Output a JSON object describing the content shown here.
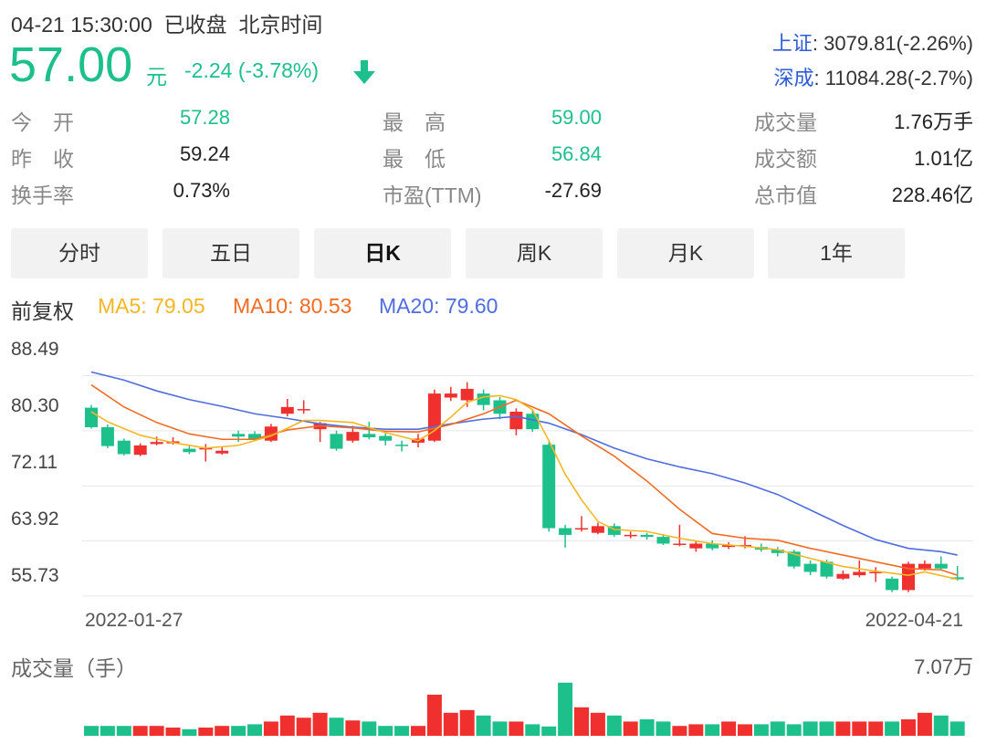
{
  "header": {
    "datetime": "04-21 15:30:00",
    "status": "已收盘",
    "timezone": "北京时间",
    "price": "57.00",
    "unit": "元",
    "change": "-2.24 (-3.78%)",
    "trend_icon": "arrow-down-icon"
  },
  "indices": [
    {
      "name": "上证",
      "value": ": 3079.81(-2.26%)"
    },
    {
      "name": "深成",
      "value": ": 11084.28(-2.7%)"
    }
  ],
  "stats": {
    "open_label": "今　开",
    "open": "57.28",
    "prev_close_label": "昨　收",
    "prev_close": "59.24",
    "turnover_label": "换手率",
    "turnover": "0.73%",
    "high_label": "最　高",
    "high": "59.00",
    "low_label": "最　低",
    "low": "56.84",
    "pe_label": "市盈(TTM)",
    "pe": "-27.69",
    "volume_label": "成交量",
    "volume": "1.76万手",
    "amount_label": "成交额",
    "amount": "1.01亿",
    "mktcap_label": "总市值",
    "mktcap": "228.46亿"
  },
  "tabs": [
    {
      "label": "分时",
      "active": false
    },
    {
      "label": "五日",
      "active": false
    },
    {
      "label": "日K",
      "active": true
    },
    {
      "label": "周K",
      "active": false
    },
    {
      "label": "月K",
      "active": false
    },
    {
      "label": "1年",
      "active": false
    }
  ],
  "legend": {
    "adjust": "前复权",
    "ma5": "MA5: 79.05",
    "ma10": "MA10: 80.53",
    "ma20": "MA20: 79.60"
  },
  "colors": {
    "up": "#f0302f",
    "down": "#1dbf8a",
    "ma5": "#f5b623",
    "ma10": "#f26b22",
    "ma20": "#4f6de0",
    "index_name": "#2e5bd9"
  },
  "volume": {
    "title": "成交量（手）",
    "max": "7.07万"
  },
  "chart_data": {
    "type": "candlestick",
    "y_ticks": [
      "88.49",
      "80.30",
      "72.11",
      "63.92",
      "55.73"
    ],
    "ylim": [
      54.5,
      89.5
    ],
    "x_labels": [
      "2022-01-27",
      "2022-04-21"
    ],
    "candles": [
      {
        "o": 82.5,
        "c": 79.6,
        "h": 82.9,
        "l": 79.4
      },
      {
        "o": 79.6,
        "c": 76.8,
        "h": 80.0,
        "l": 76.5
      },
      {
        "o": 77.6,
        "c": 75.6,
        "h": 77.9,
        "l": 75.4
      },
      {
        "o": 75.5,
        "c": 76.9,
        "h": 77.2,
        "l": 75.3
      },
      {
        "o": 77.1,
        "c": 77.4,
        "h": 78.2,
        "l": 76.9
      },
      {
        "o": 77.2,
        "c": 77.5,
        "h": 78.1,
        "l": 77.0
      },
      {
        "o": 76.4,
        "c": 75.9,
        "h": 76.8,
        "l": 75.6
      },
      {
        "o": 76.4,
        "c": 76.5,
        "h": 77.1,
        "l": 74.5
      },
      {
        "o": 75.7,
        "c": 76.1,
        "h": 76.7,
        "l": 75.5
      },
      {
        "o": 78.6,
        "c": 78.2,
        "h": 79.1,
        "l": 77.4
      },
      {
        "o": 78.6,
        "c": 77.9,
        "h": 79.0,
        "l": 77.6
      },
      {
        "o": 77.6,
        "c": 79.7,
        "h": 80.1,
        "l": 77.4
      },
      {
        "o": 81.6,
        "c": 82.6,
        "h": 83.8,
        "l": 81.2
      },
      {
        "o": 82.1,
        "c": 82.3,
        "h": 83.6,
        "l": 81.6
      },
      {
        "o": 79.3,
        "c": 80.2,
        "h": 80.4,
        "l": 77.4
      },
      {
        "o": 78.6,
        "c": 76.4,
        "h": 79.1,
        "l": 76.1
      },
      {
        "o": 77.6,
        "c": 78.9,
        "h": 79.8,
        "l": 77.3
      },
      {
        "o": 78.6,
        "c": 78.1,
        "h": 80.4,
        "l": 77.8
      },
      {
        "o": 78.3,
        "c": 77.6,
        "h": 78.7,
        "l": 76.9
      },
      {
        "o": 77.0,
        "c": 76.9,
        "h": 77.6,
        "l": 76.0
      },
      {
        "o": 77.3,
        "c": 77.9,
        "h": 78.6,
        "l": 76.6
      },
      {
        "o": 77.6,
        "c": 84.6,
        "h": 85.2,
        "l": 77.4
      },
      {
        "o": 84.0,
        "c": 84.6,
        "h": 85.6,
        "l": 83.5
      },
      {
        "o": 83.6,
        "c": 85.3,
        "h": 86.3,
        "l": 82.6
      },
      {
        "o": 84.6,
        "c": 82.9,
        "h": 85.2,
        "l": 82.1
      },
      {
        "o": 83.6,
        "c": 81.6,
        "h": 84.1,
        "l": 80.8
      },
      {
        "o": 79.3,
        "c": 81.9,
        "h": 82.4,
        "l": 78.4
      },
      {
        "o": 81.6,
        "c": 79.3,
        "h": 82.1,
        "l": 78.9
      },
      {
        "o": 77.0,
        "c": 64.6,
        "h": 77.4,
        "l": 64.1
      },
      {
        "o": 64.6,
        "c": 63.6,
        "h": 65.1,
        "l": 61.7
      },
      {
        "o": 64.6,
        "c": 64.6,
        "h": 66.4,
        "l": 64.1
      },
      {
        "o": 63.9,
        "c": 64.9,
        "h": 65.4,
        "l": 63.7
      },
      {
        "o": 64.9,
        "c": 63.6,
        "h": 65.3,
        "l": 63.3
      },
      {
        "o": 63.6,
        "c": 63.6,
        "h": 64.1,
        "l": 63.1
      },
      {
        "o": 63.6,
        "c": 63.3,
        "h": 63.9,
        "l": 62.9
      },
      {
        "o": 63.3,
        "c": 62.3,
        "h": 63.7,
        "l": 62.1
      },
      {
        "o": 62.3,
        "c": 62.3,
        "h": 65.1,
        "l": 61.9
      },
      {
        "o": 61.6,
        "c": 62.3,
        "h": 62.7,
        "l": 61.1
      },
      {
        "o": 62.3,
        "c": 61.6,
        "h": 62.8,
        "l": 61.3
      },
      {
        "o": 61.8,
        "c": 62.1,
        "h": 62.5,
        "l": 61.5
      },
      {
        "o": 61.9,
        "c": 62.1,
        "h": 63.4,
        "l": 61.6
      },
      {
        "o": 61.8,
        "c": 61.4,
        "h": 62.3,
        "l": 61.1
      },
      {
        "o": 61.4,
        "c": 60.9,
        "h": 61.8,
        "l": 60.4
      },
      {
        "o": 61.1,
        "c": 58.9,
        "h": 61.4,
        "l": 58.6
      },
      {
        "o": 59.3,
        "c": 58.1,
        "h": 59.8,
        "l": 57.6
      },
      {
        "o": 59.6,
        "c": 57.4,
        "h": 59.9,
        "l": 57.1
      },
      {
        "o": 57.1,
        "c": 57.8,
        "h": 58.3,
        "l": 56.9
      },
      {
        "o": 57.6,
        "c": 58.1,
        "h": 59.8,
        "l": 57.3
      },
      {
        "o": 58.1,
        "c": 58.1,
        "h": 58.8,
        "l": 56.6
      },
      {
        "o": 57.1,
        "c": 55.4,
        "h": 57.4,
        "l": 55.1
      },
      {
        "o": 55.4,
        "c": 59.3,
        "h": 59.6,
        "l": 55.1
      },
      {
        "o": 58.6,
        "c": 59.3,
        "h": 59.8,
        "l": 58.3
      },
      {
        "o": 59.3,
        "c": 58.6,
        "h": 60.4,
        "l": 58.3
      },
      {
        "o": 57.3,
        "c": 57.0,
        "h": 59.0,
        "l": 56.8
      }
    ],
    "ma5": [
      [
        0,
        81.9
      ],
      [
        1,
        80.4
      ],
      [
        3,
        78.4
      ],
      [
        5,
        77.3
      ],
      [
        7,
        76.5
      ],
      [
        9,
        76.9
      ],
      [
        11,
        78.3
      ],
      [
        13,
        80.6
      ],
      [
        14,
        80.6
      ],
      [
        16,
        80.3
      ],
      [
        18,
        78.8
      ],
      [
        20,
        77.6
      ],
      [
        21,
        79.1
      ],
      [
        22,
        81.1
      ],
      [
        23,
        83.3
      ],
      [
        24,
        84.1
      ],
      [
        25,
        84.3
      ],
      [
        26,
        83.7
      ],
      [
        27,
        82.2
      ],
      [
        28,
        77.6
      ],
      [
        29,
        72.6
      ],
      [
        30,
        68.8
      ],
      [
        31,
        65.6
      ],
      [
        32,
        64.4
      ],
      [
        34,
        64.1
      ],
      [
        36,
        63.1
      ],
      [
        38,
        62.3
      ],
      [
        40,
        61.9
      ],
      [
        42,
        61.4
      ],
      [
        44,
        60.1
      ],
      [
        46,
        58.9
      ],
      [
        48,
        58.2
      ],
      [
        50,
        57.6
      ],
      [
        51,
        58.1
      ],
      [
        53,
        57.0
      ]
    ],
    "ma10": [
      [
        0,
        85.9
      ],
      [
        2,
        82.6
      ],
      [
        4,
        80.3
      ],
      [
        6,
        78.6
      ],
      [
        8,
        77.8
      ],
      [
        10,
        77.8
      ],
      [
        12,
        79.2
      ],
      [
        14,
        79.8
      ],
      [
        16,
        79.5
      ],
      [
        18,
        79.0
      ],
      [
        20,
        78.9
      ],
      [
        22,
        80.0
      ],
      [
        24,
        81.6
      ],
      [
        26,
        83.6
      ],
      [
        28,
        81.6
      ],
      [
        30,
        78.3
      ],
      [
        32,
        75.3
      ],
      [
        34,
        71.6
      ],
      [
        36,
        67.4
      ],
      [
        38,
        63.8
      ],
      [
        40,
        63.1
      ],
      [
        42,
        62.8
      ],
      [
        44,
        61.6
      ],
      [
        46,
        60.6
      ],
      [
        48,
        59.6
      ],
      [
        50,
        58.6
      ],
      [
        52,
        58.4
      ],
      [
        53,
        57.6
      ]
    ],
    "ma20": [
      [
        0,
        87.8
      ],
      [
        2,
        86.6
      ],
      [
        4,
        85.0
      ],
      [
        6,
        83.7
      ],
      [
        8,
        82.7
      ],
      [
        10,
        81.6
      ],
      [
        12,
        80.9
      ],
      [
        14,
        80.1
      ],
      [
        16,
        79.6
      ],
      [
        18,
        79.3
      ],
      [
        20,
        79.3
      ],
      [
        22,
        80.1
      ],
      [
        24,
        80.8
      ],
      [
        26,
        81.2
      ],
      [
        28,
        80.2
      ],
      [
        30,
        78.5
      ],
      [
        32,
        76.5
      ],
      [
        34,
        74.9
      ],
      [
        36,
        73.7
      ],
      [
        38,
        72.7
      ],
      [
        40,
        71.3
      ],
      [
        42,
        69.6
      ],
      [
        44,
        67.3
      ],
      [
        46,
        65.0
      ],
      [
        48,
        62.9
      ],
      [
        50,
        61.6
      ],
      [
        52,
        61.1
      ],
      [
        53,
        60.6
      ]
    ],
    "volumes": [
      0.18,
      0.18,
      0.18,
      0.18,
      0.18,
      0.15,
      0.12,
      0.15,
      0.18,
      0.18,
      0.21,
      0.26,
      0.37,
      0.33,
      0.42,
      0.33,
      0.28,
      0.26,
      0.18,
      0.18,
      0.18,
      0.75,
      0.42,
      0.47,
      0.37,
      0.26,
      0.26,
      0.21,
      0.17,
      0.97,
      0.52,
      0.42,
      0.37,
      0.26,
      0.3,
      0.26,
      0.18,
      0.21,
      0.21,
      0.26,
      0.21,
      0.21,
      0.26,
      0.21,
      0.26,
      0.26,
      0.26,
      0.26,
      0.26,
      0.26,
      0.3,
      0.42,
      0.37,
      0.26
    ]
  }
}
